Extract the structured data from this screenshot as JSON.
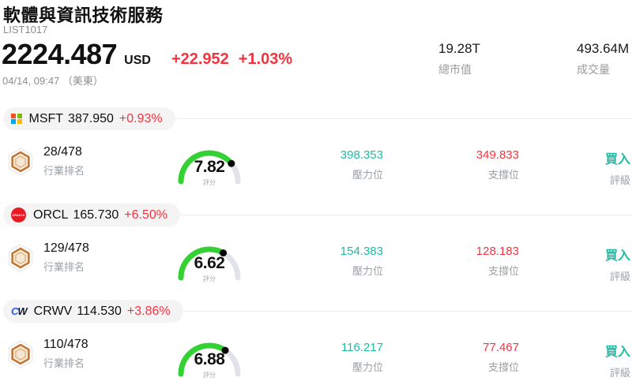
{
  "header": {
    "title": "軟體與資訊技術服務",
    "list_id": "LIST1017",
    "price": "2224.487",
    "currency": "USD",
    "change": "+22.952",
    "change_pct": "+1.03%",
    "datetime": "04/14, 09:47 （美東）",
    "market_cap": {
      "value": "19.28T",
      "label": "總市值"
    },
    "volume": {
      "value": "493.64M",
      "label": "成交量"
    }
  },
  "labels": {
    "rank": "行業排名",
    "score": "評分",
    "resistance": "壓力位",
    "support": "支撐位",
    "rating": "評級"
  },
  "colors": {
    "up_red": "#f5333f",
    "teal": "#1fbca6",
    "gauge_green": "#33d133",
    "gauge_track": "#e2e2ea",
    "gauge_dot": "#000000"
  },
  "rows": [
    {
      "ticker": "MSFT",
      "logo": "msft",
      "price": "387.950",
      "change_pct": "+0.93%",
      "rank": "28/478",
      "score": 7.82,
      "score_text": "7.82",
      "resistance": "398.353",
      "support": "349.833",
      "rating": "買入"
    },
    {
      "ticker": "ORCL",
      "logo": "orcl",
      "price": "165.730",
      "change_pct": "+6.50%",
      "rank": "129/478",
      "score": 6.62,
      "score_text": "6.62",
      "resistance": "154.383",
      "support": "128.183",
      "rating": "買入"
    },
    {
      "ticker": "CRWV",
      "logo": "crwv",
      "price": "114.530",
      "change_pct": "+3.86%",
      "rank": "110/478",
      "score": 6.88,
      "score_text": "6.88",
      "resistance": "116.217",
      "support": "77.467",
      "rating": "買入"
    }
  ]
}
